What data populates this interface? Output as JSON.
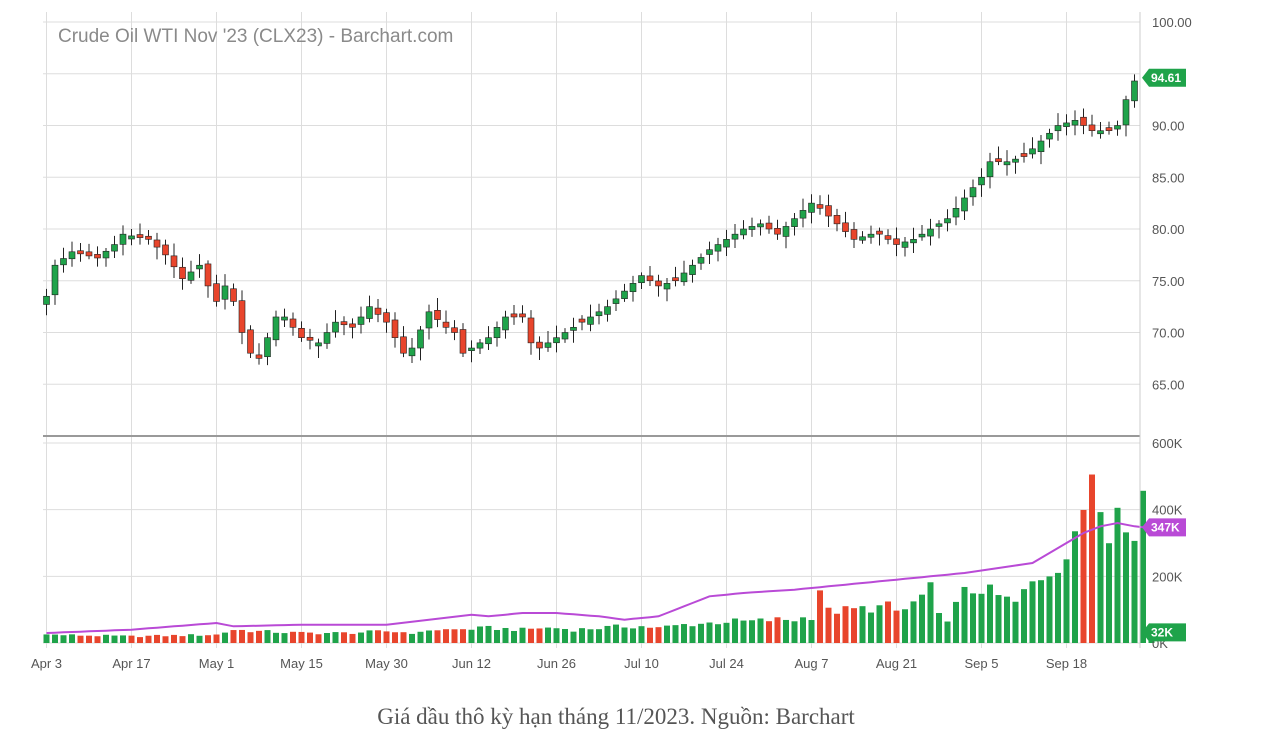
{
  "chart_data": {
    "type": "candlestick",
    "title": "Crude Oil WTI Nov '23 (CLX23) - Barchart.com",
    "price_axis": {
      "range": [
        60,
        100
      ],
      "ticks": [
        "100.00",
        "95.00",
        "90.00",
        "85.00",
        "80.00",
        "75.00",
        "70.00",
        "65.00"
      ],
      "tick_values": [
        100,
        95,
        90,
        85,
        80,
        75,
        70,
        65
      ],
      "side": "right"
    },
    "volume_axis": {
      "range": [
        0,
        600000
      ],
      "ticks": [
        "600K",
        "400K",
        "200K",
        "0K"
      ],
      "tick_values": [
        600000,
        400000,
        200000,
        0
      ],
      "side": "right"
    },
    "x_labels": [
      "Apr 3",
      "Apr 17",
      "May 1",
      "May 15",
      "May 30",
      "Jun 12",
      "Jun 26",
      "Jul 10",
      "Jul 24",
      "Aug 7",
      "Aug 21",
      "Sep 5",
      "Sep 18"
    ],
    "x_label_index": [
      0,
      10,
      20,
      30,
      40,
      50,
      60,
      70,
      80,
      90,
      100,
      110,
      120
    ],
    "last_price_label": "94.61",
    "last_price": 94.61,
    "volume_avg_label": "347K",
    "volume_avg": 347000,
    "volume_last_label": "32K",
    "volume_last": 32000,
    "colors": {
      "up": "#1fa34a",
      "down": "#e8452c",
      "avg_line": "#b94ad6",
      "grid": "#dddddd",
      "badge_price": "#1fa34a",
      "badge_avg": "#b94ad6"
    },
    "price_anchors": [
      [
        0,
        73.5
      ],
      [
        1,
        76.5
      ],
      [
        3,
        77.8
      ],
      [
        6,
        77.2
      ],
      [
        8,
        78.5
      ],
      [
        9,
        79.5
      ],
      [
        12,
        79.0
      ],
      [
        14,
        77.5
      ],
      [
        16,
        75.2
      ],
      [
        18,
        76.5
      ],
      [
        19,
        74.5
      ],
      [
        20,
        73.0
      ],
      [
        21,
        74.5
      ],
      [
        22,
        73.0
      ],
      [
        23,
        70.0
      ],
      [
        24,
        68.0
      ],
      [
        25,
        67.5
      ],
      [
        27,
        71.5
      ],
      [
        28,
        71.5
      ],
      [
        30,
        69.5
      ],
      [
        32,
        69.0
      ],
      [
        34,
        71.0
      ],
      [
        36,
        70.5
      ],
      [
        38,
        72.5
      ],
      [
        40,
        71.0
      ],
      [
        42,
        68.0
      ],
      [
        43,
        68.5
      ],
      [
        45,
        72.0
      ],
      [
        47,
        70.5
      ],
      [
        48,
        70.0
      ],
      [
        49,
        68.0
      ],
      [
        50,
        68.5
      ],
      [
        52,
        69.5
      ],
      [
        54,
        71.5
      ],
      [
        56,
        71.5
      ],
      [
        57,
        69.0
      ],
      [
        58,
        68.5
      ],
      [
        60,
        69.5
      ],
      [
        62,
        70.5
      ],
      [
        64,
        71.5
      ],
      [
        66,
        72.5
      ],
      [
        68,
        74.0
      ],
      [
        70,
        75.5
      ],
      [
        72,
        74.5
      ],
      [
        74,
        75.0
      ],
      [
        76,
        76.5
      ],
      [
        78,
        78.0
      ],
      [
        80,
        79.0
      ],
      [
        82,
        80.0
      ],
      [
        84,
        80.5
      ],
      [
        86,
        79.5
      ],
      [
        88,
        81.0
      ],
      [
        89,
        81.8
      ],
      [
        90,
        82.5
      ],
      [
        91,
        82.0
      ],
      [
        93,
        80.5
      ],
      [
        95,
        79.0
      ],
      [
        97,
        79.5
      ],
      [
        98,
        79.5
      ],
      [
        99,
        79.0
      ],
      [
        100,
        78.5
      ],
      [
        102,
        79.0
      ],
      [
        104,
        80.0
      ],
      [
        106,
        81.0
      ],
      [
        108,
        83.0
      ],
      [
        110,
        85.0
      ],
      [
        111,
        86.5
      ],
      [
        113,
        86.5
      ],
      [
        115,
        87.0
      ],
      [
        117,
        88.5
      ],
      [
        119,
        90.0
      ],
      [
        121,
        90.5
      ],
      [
        122,
        90.0
      ],
      [
        123,
        89.5
      ],
      [
        125,
        89.5
      ],
      [
        126,
        90.0
      ],
      [
        127,
        92.5
      ],
      [
        128,
        94.3
      ]
    ],
    "volume_anchors": [
      [
        0,
        25000
      ],
      [
        10,
        20000
      ],
      [
        20,
        25000
      ],
      [
        22,
        40000
      ],
      [
        25,
        35000
      ],
      [
        30,
        30000
      ],
      [
        35,
        30000
      ],
      [
        40,
        35000
      ],
      [
        44,
        30000
      ],
      [
        45,
        40000
      ],
      [
        48,
        40000
      ],
      [
        52,
        45000
      ],
      [
        56,
        40000
      ],
      [
        58,
        45000
      ],
      [
        60,
        45000
      ],
      [
        62,
        40000
      ],
      [
        65,
        45000
      ],
      [
        68,
        50000
      ],
      [
        70,
        50000
      ],
      [
        72,
        45000
      ],
      [
        75,
        55000
      ],
      [
        78,
        60000
      ],
      [
        80,
        65000
      ],
      [
        83,
        65000
      ],
      [
        86,
        70000
      ],
      [
        88,
        70000
      ],
      [
        90,
        80000
      ],
      [
        91,
        165000
      ],
      [
        92,
        95000
      ],
      [
        95,
        100000
      ],
      [
        97,
        105000
      ],
      [
        99,
        110000
      ],
      [
        100,
        95000
      ],
      [
        101,
        100000
      ],
      [
        103,
        140000
      ],
      [
        104,
        160000
      ],
      [
        105,
        80000
      ],
      [
        106,
        75000
      ],
      [
        108,
        150000
      ],
      [
        110,
        165000
      ],
      [
        112,
        140000
      ],
      [
        114,
        120000
      ],
      [
        116,
        180000
      ],
      [
        118,
        220000
      ],
      [
        120,
        260000
      ],
      [
        121,
        300000
      ],
      [
        122,
        410000
      ],
      [
        123,
        540000
      ],
      [
        124,
        460000
      ],
      [
        125,
        350000
      ],
      [
        126,
        400000
      ],
      [
        127,
        330000
      ],
      [
        128,
        320000
      ],
      [
        129,
        480000
      ],
      [
        130,
        32000
      ]
    ],
    "avg_anchors": [
      [
        0,
        30000
      ],
      [
        10,
        40000
      ],
      [
        20,
        60000
      ],
      [
        22,
        50000
      ],
      [
        30,
        55000
      ],
      [
        40,
        55000
      ],
      [
        50,
        85000
      ],
      [
        52,
        80000
      ],
      [
        56,
        90000
      ],
      [
        60,
        90000
      ],
      [
        65,
        80000
      ],
      [
        68,
        70000
      ],
      [
        72,
        80000
      ],
      [
        75,
        110000
      ],
      [
        78,
        140000
      ],
      [
        82,
        150000
      ],
      [
        88,
        160000
      ],
      [
        94,
        175000
      ],
      [
        98,
        185000
      ],
      [
        100,
        190000
      ],
      [
        104,
        200000
      ],
      [
        108,
        210000
      ],
      [
        112,
        225000
      ],
      [
        116,
        240000
      ],
      [
        118,
        270000
      ],
      [
        120,
        300000
      ],
      [
        122,
        330000
      ],
      [
        124,
        350000
      ],
      [
        126,
        360000
      ],
      [
        127,
        355000
      ],
      [
        128,
        350000
      ],
      [
        129,
        347000
      ]
    ]
  },
  "caption": "Giá dầu thô kỳ hạn tháng 11/2023. Nguồn: Barchart"
}
